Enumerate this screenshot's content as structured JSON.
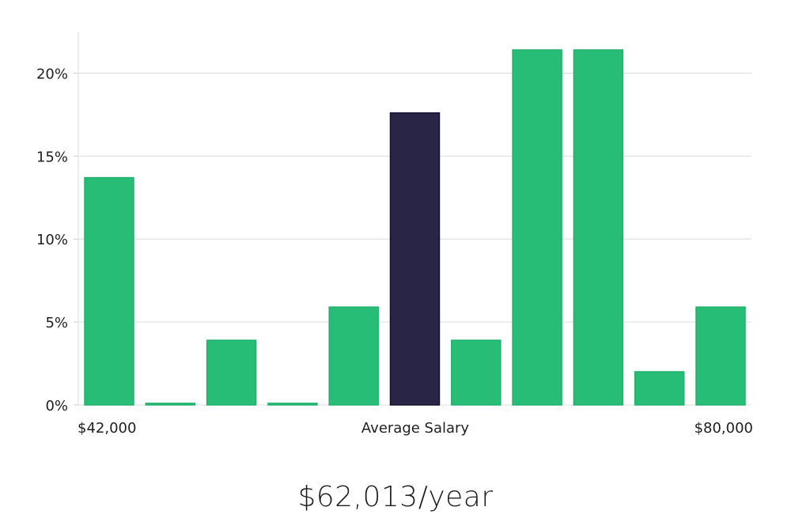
{
  "chart_data": {
    "type": "bar",
    "title": "",
    "xlabel": "Average Salary",
    "ylabel": "",
    "x_start_label": "$42,000",
    "x_end_label": "$80,000",
    "ylim": [
      0,
      22.5
    ],
    "yticks": [
      0,
      5,
      10,
      15,
      20
    ],
    "ytick_labels": [
      "0%",
      "5%",
      "10%",
      "15%",
      "20%"
    ],
    "values": [
      13.7,
      0.1,
      3.9,
      0.1,
      5.9,
      17.6,
      3.9,
      21.4,
      21.4,
      2.0,
      5.9
    ],
    "highlight_index": 5,
    "colors": {
      "bar": "#27bd77",
      "highlight": "#282547",
      "highlight_stroke": "#131130"
    },
    "grid": true
  },
  "summary": {
    "salary_text": "$62,013/year"
  }
}
